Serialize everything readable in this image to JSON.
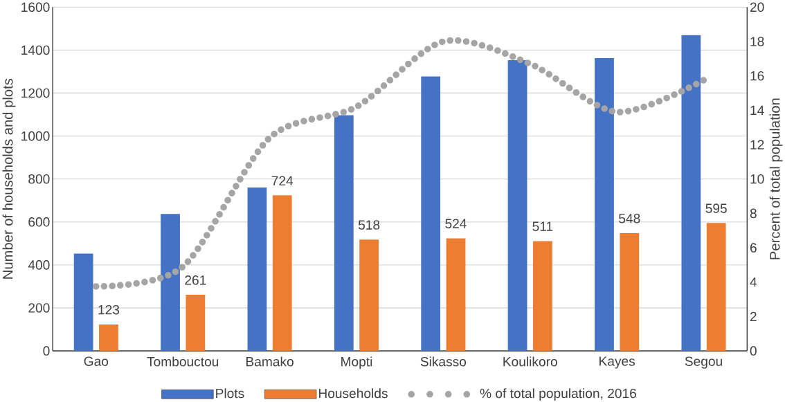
{
  "chart_data": {
    "type": "bar",
    "ylabel": "Number of households and plots",
    "y2label": "Percent of total population",
    "categories": [
      "Gao",
      "Tombouctou",
      "Bamako",
      "Mopti",
      "Sikasso",
      "Koulikoro",
      "Kayes",
      "Segou"
    ],
    "series": [
      {
        "name": "Plots",
        "color": "#4472c4",
        "values": [
          453,
          637,
          760,
          1097,
          1277,
          1353,
          1363,
          1470
        ]
      },
      {
        "name": "Households",
        "color": "#ed7d31",
        "values": [
          123,
          261,
          724,
          518,
          524,
          511,
          548,
          595
        ],
        "value_labels": [
          "123",
          "261",
          "724",
          "518",
          "524",
          "511",
          "548",
          "595"
        ]
      },
      {
        "name": "% of total population, 2016",
        "type": "line",
        "axis": "y2",
        "color": "#a5a5a5",
        "line_style": "dotted",
        "values": [
          3.75,
          4.9,
          12.4,
          14.2,
          18.0,
          16.7,
          13.9,
          15.75
        ]
      }
    ],
    "ylim": [
      0,
      1600
    ],
    "yticks": [
      0,
      200,
      400,
      600,
      800,
      1000,
      1200,
      1400,
      1600
    ],
    "y2lim": [
      0,
      20
    ],
    "y2ticks": [
      0,
      2,
      4,
      6,
      8,
      10,
      12,
      14,
      16,
      18,
      20
    ],
    "grid": "y",
    "legend": "bottom"
  }
}
